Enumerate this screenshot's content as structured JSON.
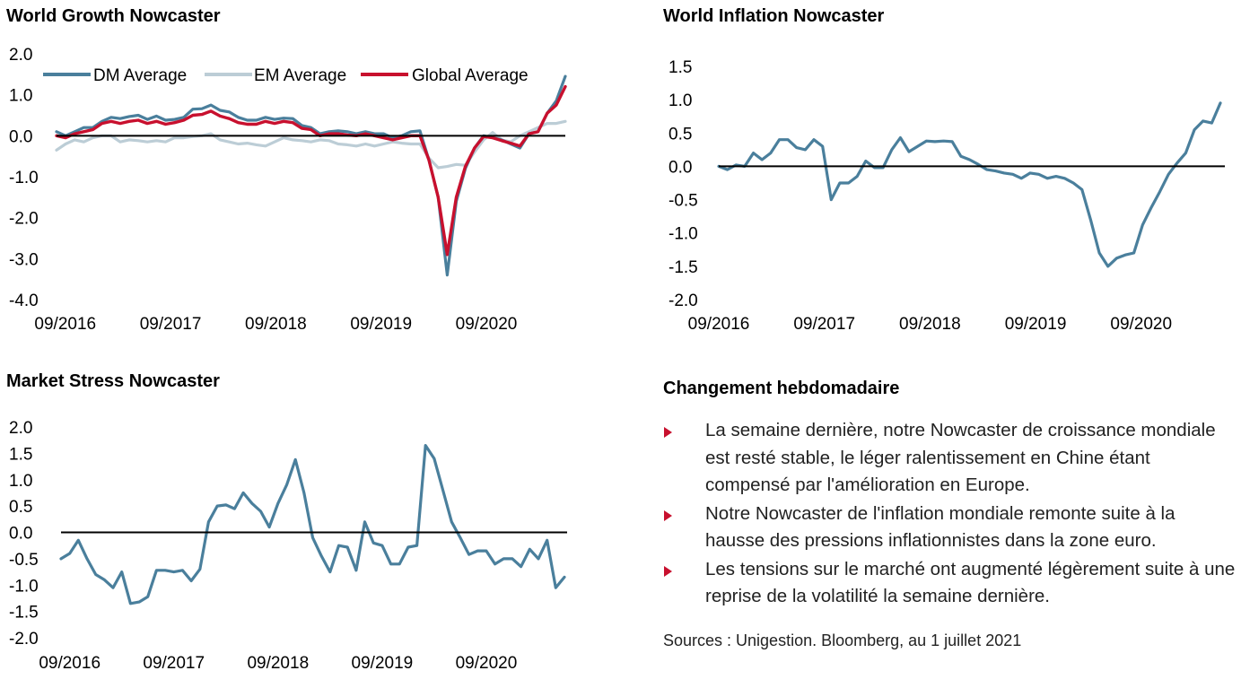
{
  "charts": {
    "growth": {
      "title": "World Growth Nowcaster"
    },
    "inflation": {
      "title": "World Inflation Nowcaster"
    },
    "stress": {
      "title": "Market Stress Nowcaster"
    }
  },
  "colors": {
    "dm": "#4a7f9c",
    "em": "#bccdd6",
    "global": "#c8102e",
    "zero": "#000000"
  },
  "commentary": {
    "title": "Changement hebdomadaire",
    "bullets": [
      "La semaine dernière, notre Nowcaster de croissance mondiale est resté stable, le léger ralentissement en Chine étant compensé par l'amélioration en Europe.",
      "Notre Nowcaster de l'inflation mondiale remonte suite à la hausse des pressions inflationnistes dans la zone euro.",
      "Les tensions sur le marché ont augmenté légèrement suite à une reprise de la volatilité la semaine dernière."
    ]
  },
  "sources": "Sources : Unigestion. Bloomberg, au 1 juillet 2021",
  "chart_data": [
    {
      "type": "line",
      "title": "World Growth Nowcaster",
      "xlabel": "",
      "ylabel": "",
      "x_ticks": [
        "09/2016",
        "09/2017",
        "09/2018",
        "09/2019",
        "09/2020"
      ],
      "x_start": "08/2016",
      "x_end": "06/2021",
      "ylim": [
        -4.0,
        2.0
      ],
      "y_ticks": [
        "2.0",
        "1.0",
        "0.0",
        "-1.0",
        "-2.0",
        "-3.0",
        "-4.0"
      ],
      "legend": "top",
      "series": [
        {
          "name": "DM Average",
          "color": "#4a7f9c",
          "values": [
            0.1,
            0.0,
            0.1,
            0.2,
            0.2,
            0.35,
            0.45,
            0.42,
            0.47,
            0.5,
            0.4,
            0.48,
            0.38,
            0.4,
            0.45,
            0.65,
            0.66,
            0.75,
            0.62,
            0.58,
            0.45,
            0.38,
            0.38,
            0.45,
            0.4,
            0.43,
            0.42,
            0.25,
            0.2,
            0.05,
            0.1,
            0.12,
            0.1,
            0.05,
            0.1,
            0.05,
            0.05,
            -0.05,
            0.0,
            0.1,
            0.12,
            -0.6,
            -1.5,
            -3.4,
            -1.6,
            -0.8,
            -0.3,
            0.0,
            -0.05,
            -0.1,
            -0.2,
            -0.3,
            0.05,
            0.1,
            0.55,
            0.85,
            1.45
          ]
        },
        {
          "name": "EM Average",
          "color": "#bccdd6",
          "values": [
            -0.35,
            -0.2,
            -0.1,
            -0.15,
            -0.05,
            0.0,
            0.0,
            -0.15,
            -0.1,
            -0.12,
            -0.15,
            -0.12,
            -0.15,
            -0.05,
            -0.05,
            -0.02,
            0.0,
            0.05,
            -0.1,
            -0.15,
            -0.2,
            -0.18,
            -0.22,
            -0.25,
            -0.15,
            -0.05,
            -0.1,
            -0.12,
            -0.15,
            -0.1,
            -0.12,
            -0.2,
            -0.22,
            -0.25,
            -0.2,
            -0.25,
            -0.2,
            -0.15,
            -0.18,
            -0.2,
            -0.2,
            -0.55,
            -0.78,
            -0.75,
            -0.7,
            -0.72,
            -0.4,
            -0.1,
            0.08,
            -0.1,
            -0.15,
            0.0,
            0.1,
            0.2,
            0.3,
            0.3,
            0.35
          ]
        },
        {
          "name": "Global Average",
          "color": "#c8102e",
          "values": [
            0.0,
            -0.05,
            0.05,
            0.1,
            0.15,
            0.3,
            0.35,
            0.3,
            0.35,
            0.38,
            0.3,
            0.35,
            0.28,
            0.32,
            0.38,
            0.5,
            0.52,
            0.6,
            0.48,
            0.42,
            0.32,
            0.28,
            0.28,
            0.35,
            0.3,
            0.35,
            0.32,
            0.18,
            0.15,
            0.0,
            0.05,
            0.05,
            0.02,
            0.0,
            0.05,
            0.0,
            -0.05,
            -0.1,
            -0.05,
            0.0,
            0.0,
            -0.6,
            -1.5,
            -2.9,
            -1.5,
            -0.75,
            -0.3,
            -0.02,
            -0.05,
            -0.12,
            -0.18,
            -0.25,
            0.05,
            0.1,
            0.55,
            0.75,
            1.2
          ]
        }
      ]
    },
    {
      "type": "line",
      "title": "World Inflation Nowcaster",
      "xlabel": "",
      "ylabel": "",
      "x_ticks": [
        "09/2016",
        "09/2017",
        "09/2018",
        "09/2019",
        "09/2020"
      ],
      "x_start": "09/2016",
      "x_end": "06/2021",
      "ylim": [
        -2.0,
        1.5
      ],
      "y_ticks": [
        "1.5",
        "1.0",
        "0.5",
        "0.0",
        "-0.5",
        "-1.0",
        "-1.5",
        "-2.0"
      ],
      "series": [
        {
          "color": "#4a7f9c",
          "values": [
            0.0,
            -0.05,
            0.02,
            0.0,
            0.2,
            0.1,
            0.2,
            0.4,
            0.4,
            0.28,
            0.25,
            0.4,
            0.3,
            -0.5,
            -0.25,
            -0.25,
            -0.15,
            0.08,
            -0.02,
            -0.02,
            0.25,
            0.43,
            0.22,
            0.3,
            0.38,
            0.37,
            0.38,
            0.37,
            0.15,
            0.1,
            0.03,
            -0.05,
            -0.07,
            -0.1,
            -0.12,
            -0.18,
            -0.1,
            -0.12,
            -0.18,
            -0.15,
            -0.18,
            -0.25,
            -0.35,
            -0.8,
            -1.3,
            -1.5,
            -1.38,
            -1.33,
            -1.3,
            -0.88,
            -0.62,
            -0.38,
            -0.12,
            0.05,
            0.2,
            0.55,
            0.68,
            0.65,
            0.95
          ]
        }
      ]
    },
    {
      "type": "line",
      "title": "Market Stress Nowcaster",
      "xlabel": "",
      "ylabel": "",
      "x_ticks": [
        "09/2016",
        "09/2017",
        "09/2018",
        "09/2019",
        "09/2020"
      ],
      "x_start": "08/2016",
      "x_end": "06/2021",
      "ylim": [
        -2.0,
        2.0
      ],
      "y_ticks": [
        "2.0",
        "1.5",
        "1.0",
        "0.5",
        "0.0",
        "-0.5",
        "-1.0",
        "-1.5",
        "-2.0"
      ],
      "series": [
        {
          "color": "#4a7f9c",
          "values": [
            -0.5,
            -0.4,
            -0.15,
            -0.5,
            -0.8,
            -0.9,
            -1.05,
            -0.75,
            -1.35,
            -1.32,
            -1.22,
            -0.72,
            -0.72,
            -0.75,
            -0.72,
            -0.92,
            -0.7,
            0.2,
            0.5,
            0.52,
            0.45,
            0.75,
            0.55,
            0.4,
            0.1,
            0.55,
            0.9,
            1.38,
            0.75,
            -0.1,
            -0.45,
            -0.75,
            -0.25,
            -0.28,
            -0.72,
            0.2,
            -0.2,
            -0.25,
            -0.6,
            -0.6,
            -0.28,
            -0.25,
            1.65,
            1.4,
            0.8,
            0.2,
            -0.1,
            -0.42,
            -0.35,
            -0.35,
            -0.6,
            -0.5,
            -0.5,
            -0.65,
            -0.32,
            -0.5,
            -0.15,
            -1.05,
            -0.85
          ]
        }
      ]
    }
  ]
}
